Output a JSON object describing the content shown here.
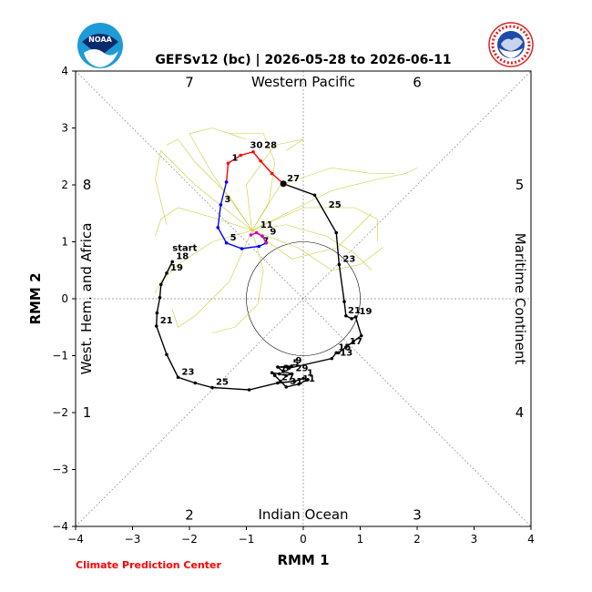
{
  "logos": {
    "left": {
      "icon": "noaa-logo",
      "text": "NOAA"
    },
    "right": {
      "icon": "nws-logo",
      "text": "NATIONAL WEATHER SERVICE"
    }
  },
  "credit": "Climate Prediction Center",
  "colors": {
    "credit": "#ff0000",
    "observed": "#000000",
    "phase_a": "#ff0000",
    "phase_b": "#0000ff",
    "phase_c": "#cc00cc",
    "ensemble": "#cccc33",
    "guides": "#888888"
  },
  "chart_data": {
    "type": "line",
    "title": "GEFSv12 (bc) | 2026-05-28 to 2026-06-11",
    "xlabel": "RMM 1",
    "ylabel": "RMM 2",
    "xlim": [
      -4,
      4
    ],
    "ylim": [
      -4,
      4
    ],
    "xticks": [
      "−4",
      "−3",
      "−2",
      "−1",
      "0",
      "1",
      "2",
      "3",
      "4"
    ],
    "yticks": [
      "−4",
      "−3",
      "−2",
      "−1",
      "0",
      "1",
      "2",
      "3",
      "4"
    ],
    "regions": {
      "top": "Western Pacific",
      "bottom": "Indian Ocean",
      "left": "West. Hem. and Africa",
      "right": "Maritime Continent"
    },
    "phases": [
      {
        "label": "1",
        "x": -3.8,
        "y": -2.0
      },
      {
        "label": "2",
        "x": -2.0,
        "y": -3.8
      },
      {
        "label": "3",
        "x": 2.0,
        "y": -3.8
      },
      {
        "label": "4",
        "x": 3.8,
        "y": -2.0
      },
      {
        "label": "5",
        "x": 3.8,
        "y": 2.0
      },
      {
        "label": "6",
        "x": 2.0,
        "y": 3.8
      },
      {
        "label": "7",
        "x": -2.0,
        "y": 3.8
      },
      {
        "label": "8",
        "x": -3.8,
        "y": 2.0
      }
    ],
    "unit_circle_radius": 1,
    "start_label": "start",
    "series": [
      {
        "id": "observed",
        "color": "#000000",
        "points": [
          [
            -2.3,
            0.65
          ],
          [
            -2.4,
            0.45
          ],
          [
            -2.5,
            0.25
          ],
          [
            -2.52,
            0.02
          ],
          [
            -2.57,
            -0.25
          ],
          [
            -2.58,
            -0.48
          ],
          [
            -2.4,
            -0.98
          ],
          [
            -2.2,
            -1.38
          ],
          [
            -1.9,
            -1.48
          ],
          [
            -1.6,
            -1.56
          ],
          [
            -0.95,
            -1.6
          ],
          [
            -0.45,
            -1.48
          ],
          [
            -0.15,
            -1.45
          ],
          [
            -0.0,
            -1.4
          ],
          [
            0.08,
            -1.42
          ],
          [
            -0.08,
            -1.5
          ],
          [
            -0.3,
            -1.55
          ],
          [
            -0.4,
            -1.45
          ],
          [
            -0.5,
            -1.35
          ],
          [
            -0.55,
            -1.3
          ],
          [
            -0.42,
            -1.32
          ],
          [
            -0.3,
            -1.35
          ],
          [
            -0.2,
            -1.32
          ],
          [
            -0.35,
            -1.28
          ],
          [
            -0.45,
            -1.2
          ],
          [
            -0.2,
            -1.18
          ],
          [
            -0.25,
            -1.22
          ],
          [
            0.5,
            -1.05
          ],
          [
            0.58,
            -0.95
          ],
          [
            0.62,
            -0.95
          ],
          [
            0.75,
            -0.85
          ],
          [
            0.88,
            -0.75
          ],
          [
            1.02,
            -0.65
          ],
          [
            0.92,
            -0.32
          ],
          [
            0.85,
            -0.35
          ],
          [
            0.75,
            -0.3
          ],
          [
            0.72,
            -0.05
          ],
          [
            0.63,
            0.6
          ],
          [
            0.58,
            1.16
          ],
          [
            0.2,
            1.82
          ],
          [
            -0.35,
            2.02
          ]
        ],
        "labels": [
          {
            "text": "18",
            "x": -2.3,
            "y": 0.65
          },
          {
            "text": "19",
            "x": -2.4,
            "y": 0.45
          },
          {
            "text": "21",
            "x": -2.58,
            "y": -0.48
          },
          {
            "text": "23",
            "x": -2.2,
            "y": -1.38
          },
          {
            "text": "25",
            "x": -1.6,
            "y": -1.56
          },
          {
            "text": "27",
            "x": -0.45,
            "y": -1.48
          },
          {
            "text": "29",
            "x": -0.2,
            "y": -1.32
          },
          {
            "text": "31",
            "x": -0.3,
            "y": -1.55
          },
          {
            "text": "1",
            "x": 0.0,
            "y": -1.4
          },
          {
            "text": "3",
            "x": -0.42,
            "y": -1.32
          },
          {
            "text": "5",
            "x": -0.25,
            "y": -1.22
          },
          {
            "text": "7",
            "x": -0.48,
            "y": -1.35
          },
          {
            "text": "9",
            "x": -0.2,
            "y": -1.18
          },
          {
            "text": "11",
            "x": -0.08,
            "y": -1.5
          },
          {
            "text": "13",
            "x": 0.58,
            "y": -1.05
          },
          {
            "text": "15",
            "x": 0.55,
            "y": -0.95
          },
          {
            "text": "17",
            "x": 0.75,
            "y": -0.85
          },
          {
            "text": "19",
            "x": 0.92,
            "y": -0.32
          },
          {
            "text": "21",
            "x": 0.72,
            "y": -0.3
          },
          {
            "text": "23",
            "x": 0.63,
            "y": 0.6
          },
          {
            "text": "25",
            "x": 0.38,
            "y": 1.55
          },
          {
            "text": "27",
            "x": -0.35,
            "y": 2.02
          }
        ]
      },
      {
        "id": "forecast-red",
        "color": "#ff0000",
        "points": [
          [
            -0.35,
            2.02
          ],
          [
            -0.55,
            2.2
          ],
          [
            -0.75,
            2.42
          ],
          [
            -0.88,
            2.58
          ],
          [
            -1.1,
            2.52
          ],
          [
            -1.32,
            2.38
          ],
          [
            -1.35,
            2.05
          ]
        ],
        "labels": [
          {
            "text": "28",
            "x": -0.75,
            "y": 2.6
          },
          {
            "text": "30",
            "x": -1.0,
            "y": 2.6
          },
          {
            "text": "1",
            "x": -1.32,
            "y": 2.38
          }
        ]
      },
      {
        "id": "forecast-blue",
        "color": "#0000ff",
        "points": [
          [
            -1.35,
            2.05
          ],
          [
            -1.45,
            1.65
          ],
          [
            -1.5,
            1.25
          ],
          [
            -1.35,
            0.98
          ],
          [
            -1.08,
            0.88
          ],
          [
            -0.78,
            0.92
          ],
          [
            -0.65,
            0.98
          ]
        ],
        "labels": [
          {
            "text": "3",
            "x": -1.45,
            "y": 1.65
          },
          {
            "text": "5",
            "x": -1.35,
            "y": 0.98
          },
          {
            "text": "7",
            "x": -0.78,
            "y": 0.92
          }
        ]
      },
      {
        "id": "forecast-magenta",
        "color": "#cc00cc",
        "points": [
          [
            -0.65,
            0.98
          ],
          [
            -0.72,
            1.1
          ],
          [
            -0.82,
            1.16
          ],
          [
            -0.92,
            1.12
          ]
        ],
        "labels": [
          {
            "text": "9",
            "x": -0.65,
            "y": 1.08
          },
          {
            "text": "11",
            "x": -0.82,
            "y": 1.2
          }
        ]
      }
    ],
    "ensemble": [
      [
        [
          -0.9,
          1.2
        ],
        [
          -1.3,
          1.8
        ],
        [
          -1.9,
          2.4
        ],
        [
          -2.2,
          2.8
        ],
        [
          -2.4,
          2.7
        ]
      ],
      [
        [
          -0.9,
          1.2
        ],
        [
          -1.5,
          1.4
        ],
        [
          -2.2,
          1.6
        ],
        [
          -2.5,
          1.4
        ],
        [
          -2.6,
          1.1
        ]
      ],
      [
        [
          -0.9,
          1.2
        ],
        [
          -0.6,
          1.7
        ],
        [
          -0.5,
          2.4
        ],
        [
          -0.7,
          2.9
        ],
        [
          -1.3,
          2.9
        ]
      ],
      [
        [
          -0.9,
          1.2
        ],
        [
          -0.3,
          1.3
        ],
        [
          0.4,
          1.1
        ],
        [
          0.9,
          0.8
        ],
        [
          1.2,
          0.5
        ]
      ],
      [
        [
          -0.9,
          1.2
        ],
        [
          -0.1,
          0.9
        ],
        [
          0.5,
          0.5
        ],
        [
          1.0,
          0.6
        ],
        [
          1.4,
          0.9
        ]
      ],
      [
        [
          -0.9,
          1.2
        ],
        [
          -1.6,
          1.0
        ],
        [
          -2.2,
          0.6
        ],
        [
          -2.5,
          0.3
        ],
        [
          -2.6,
          0.1
        ]
      ],
      [
        [
          -0.9,
          1.2
        ],
        [
          -0.4,
          2.0
        ],
        [
          0.5,
          2.3
        ],
        [
          1.2,
          2.2
        ],
        [
          1.6,
          2.2
        ]
      ],
      [
        [
          -0.9,
          1.2
        ],
        [
          -1.9,
          2.0
        ],
        [
          -2.5,
          2.6
        ],
        [
          -2.6,
          2.1
        ],
        [
          -2.4,
          1.3
        ]
      ],
      [
        [
          -0.9,
          1.2
        ],
        [
          -0.7,
          0.5
        ],
        [
          -0.8,
          -0.1
        ],
        [
          -1.2,
          -0.5
        ],
        [
          -1.6,
          -0.6
        ]
      ],
      [
        [
          -0.9,
          1.2
        ],
        [
          0.0,
          1.6
        ],
        [
          0.9,
          1.6
        ],
        [
          1.3,
          1.4
        ],
        [
          1.3,
          1.0
        ]
      ],
      [
        [
          -0.9,
          1.2
        ],
        [
          -1.0,
          2.0
        ],
        [
          -0.5,
          2.7
        ],
        [
          0.0,
          2.8
        ],
        [
          -0.3,
          2.6
        ]
      ],
      [
        [
          -0.9,
          1.2
        ],
        [
          -1.3,
          0.3
        ],
        [
          -1.9,
          -0.3
        ],
        [
          -2.2,
          -0.5
        ],
        [
          -2.3,
          -0.2
        ]
      ],
      [
        [
          -0.9,
          1.2
        ],
        [
          0.5,
          1.9
        ],
        [
          1.3,
          2.1
        ],
        [
          1.8,
          2.2
        ],
        [
          2.0,
          2.3
        ]
      ],
      [
        [
          -0.9,
          1.2
        ],
        [
          -1.6,
          2.2
        ],
        [
          -2.0,
          2.9
        ],
        [
          -1.6,
          3.0
        ],
        [
          -1.0,
          2.8
        ]
      ],
      [
        [
          -0.9,
          1.2
        ],
        [
          -0.2,
          0.7
        ],
        [
          0.6,
          0.9
        ],
        [
          1.0,
          1.3
        ],
        [
          1.2,
          1.5
        ]
      ]
    ]
  }
}
